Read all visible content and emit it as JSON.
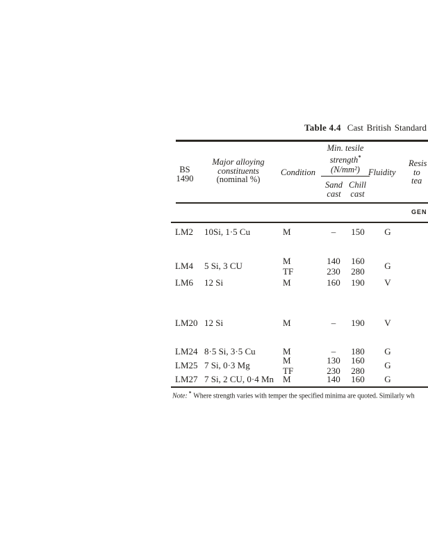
{
  "page": {
    "background": "#ffffff",
    "ink": "#1f1d1a"
  },
  "title": {
    "bold": "Table 4.4",
    "rest": "Cast British Standard"
  },
  "table": {
    "header": {
      "bs": [
        "BS",
        "1490"
      ],
      "alloying": [
        "Major alloying",
        "constituents",
        "(nominal %)"
      ],
      "condition": "Condition",
      "tensile": [
        "Min. tesile",
        "strength",
        "(N/mm²)"
      ],
      "tensile_sup": "*",
      "sand": [
        "Sand",
        "cast"
      ],
      "chill": [
        "Chill",
        "cast"
      ],
      "fluidity": "Fluidity",
      "resistance_clipped": [
        "Resis",
        "to",
        "tea"
      ]
    },
    "section_clipped": "GEN",
    "rows": [
      {
        "bs": "LM2",
        "alloy": "10Si, 1·5 Cu",
        "fluidity": "G",
        "lines": [
          {
            "condition": "M",
            "sand": "–",
            "chill": "150"
          }
        ]
      },
      {
        "bs": "LM4",
        "alloy": "5 Si, 3 CU",
        "fluidity": "G",
        "lines": [
          {
            "condition": "M",
            "sand": "140",
            "chill": "160"
          },
          {
            "condition": "TF",
            "sand": "230",
            "chill": "280"
          }
        ]
      },
      {
        "bs": "LM6",
        "alloy": "12 Si",
        "fluidity": "V",
        "lines": [
          {
            "condition": "M",
            "sand": "160",
            "chill": "190"
          }
        ]
      },
      {
        "bs": "LM20",
        "alloy": "12 Si",
        "fluidity": "V",
        "lines": [
          {
            "condition": "M",
            "sand": "–",
            "chill": "190"
          }
        ]
      },
      {
        "bs": "LM24",
        "alloy": "8·5 Si, 3·5 Cu",
        "fluidity": "G",
        "lines": [
          {
            "condition": "M",
            "sand": "–",
            "chill": "180"
          }
        ]
      },
      {
        "bs": "LM25",
        "alloy": "7 Si, 0·3 Mg",
        "fluidity": "G",
        "lines": [
          {
            "condition": "M",
            "sand": "130",
            "chill": "160"
          },
          {
            "condition": "TF",
            "sand": "230",
            "chill": "280"
          }
        ]
      },
      {
        "bs": "LM27",
        "alloy": "7 Si, 2 CU, 0·4 Mn",
        "fluidity": "G",
        "lines": [
          {
            "condition": "M",
            "sand": "140",
            "chill": "160"
          }
        ]
      }
    ]
  },
  "note": {
    "label": "Note:",
    "sup": "*",
    "text": "Where strength varies with temper the specified minima are quoted. Similarly wh"
  }
}
